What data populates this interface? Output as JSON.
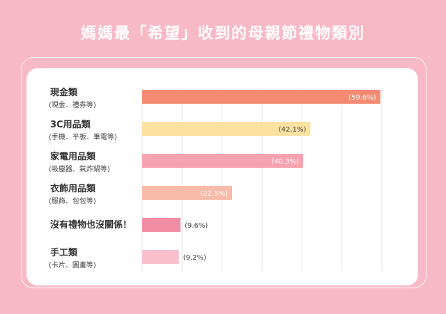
{
  "title": "媽媽最「希望」收到的母親節禮物類別",
  "chart_data": {
    "type": "bar",
    "orientation": "horizontal",
    "title": "媽媽最「希望」收到的母親節禮物類別",
    "xlim": [
      0,
      60
    ],
    "grid": true,
    "categories": [
      {
        "label": "現金類",
        "sub": "(現金、禮券等)",
        "value": 59.6,
        "value_label": "(59.6%)",
        "color": "#f58a72",
        "label_inside": true
      },
      {
        "label": "3C用品類",
        "sub": "(手機、平板、筆電等)",
        "value": 42.1,
        "value_label": "(42.1%)",
        "color": "#fbe2a1",
        "label_inside": true
      },
      {
        "label": "家電用品類",
        "sub": "(吸塵器、氣炸鍋等)",
        "value": 40.3,
        "value_label": "(40.3%)",
        "color": "#f6a2b0",
        "label_inside": true
      },
      {
        "label": "衣飾用品類",
        "sub": "(服飾、包包等)",
        "value": 22.5,
        "value_label": "(22.5%)",
        "color": "#f8bba9",
        "label_inside": true
      },
      {
        "label": "沒有禮物也沒關係！",
        "sub": "",
        "value": 9.6,
        "value_label": "(9.6%)",
        "color": "#f18ea5",
        "label_inside": false
      },
      {
        "label": "手工類",
        "sub": "(卡片、圖畫等)",
        "value": 9.2,
        "value_label": "(9.2%)",
        "color": "#f9bfcd",
        "label_inside": false
      }
    ]
  }
}
